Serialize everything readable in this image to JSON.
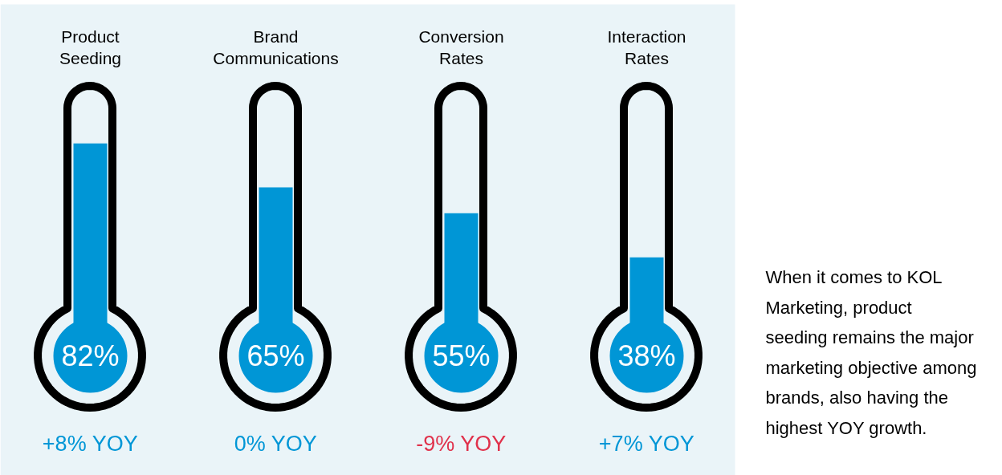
{
  "chart_data": {
    "type": "bar",
    "categories": [
      "Product\nSeeding",
      "Brand\nCommunications",
      "Conversion\nRates",
      "Interaction\nRates"
    ],
    "values": [
      82,
      65,
      55,
      38
    ],
    "value_labels": [
      "82%",
      "65%",
      "55%",
      "38%"
    ],
    "color": "#0096d6",
    "annotations": [
      "+8% YOY",
      "0% YOY",
      "-9% YOY",
      "+7% YOY",
      "When it comes to KOL Marketing, product seeding remains the major marketing objective among brands, also having the highest YOY growth."
    ],
    "grid": false
  }
}
